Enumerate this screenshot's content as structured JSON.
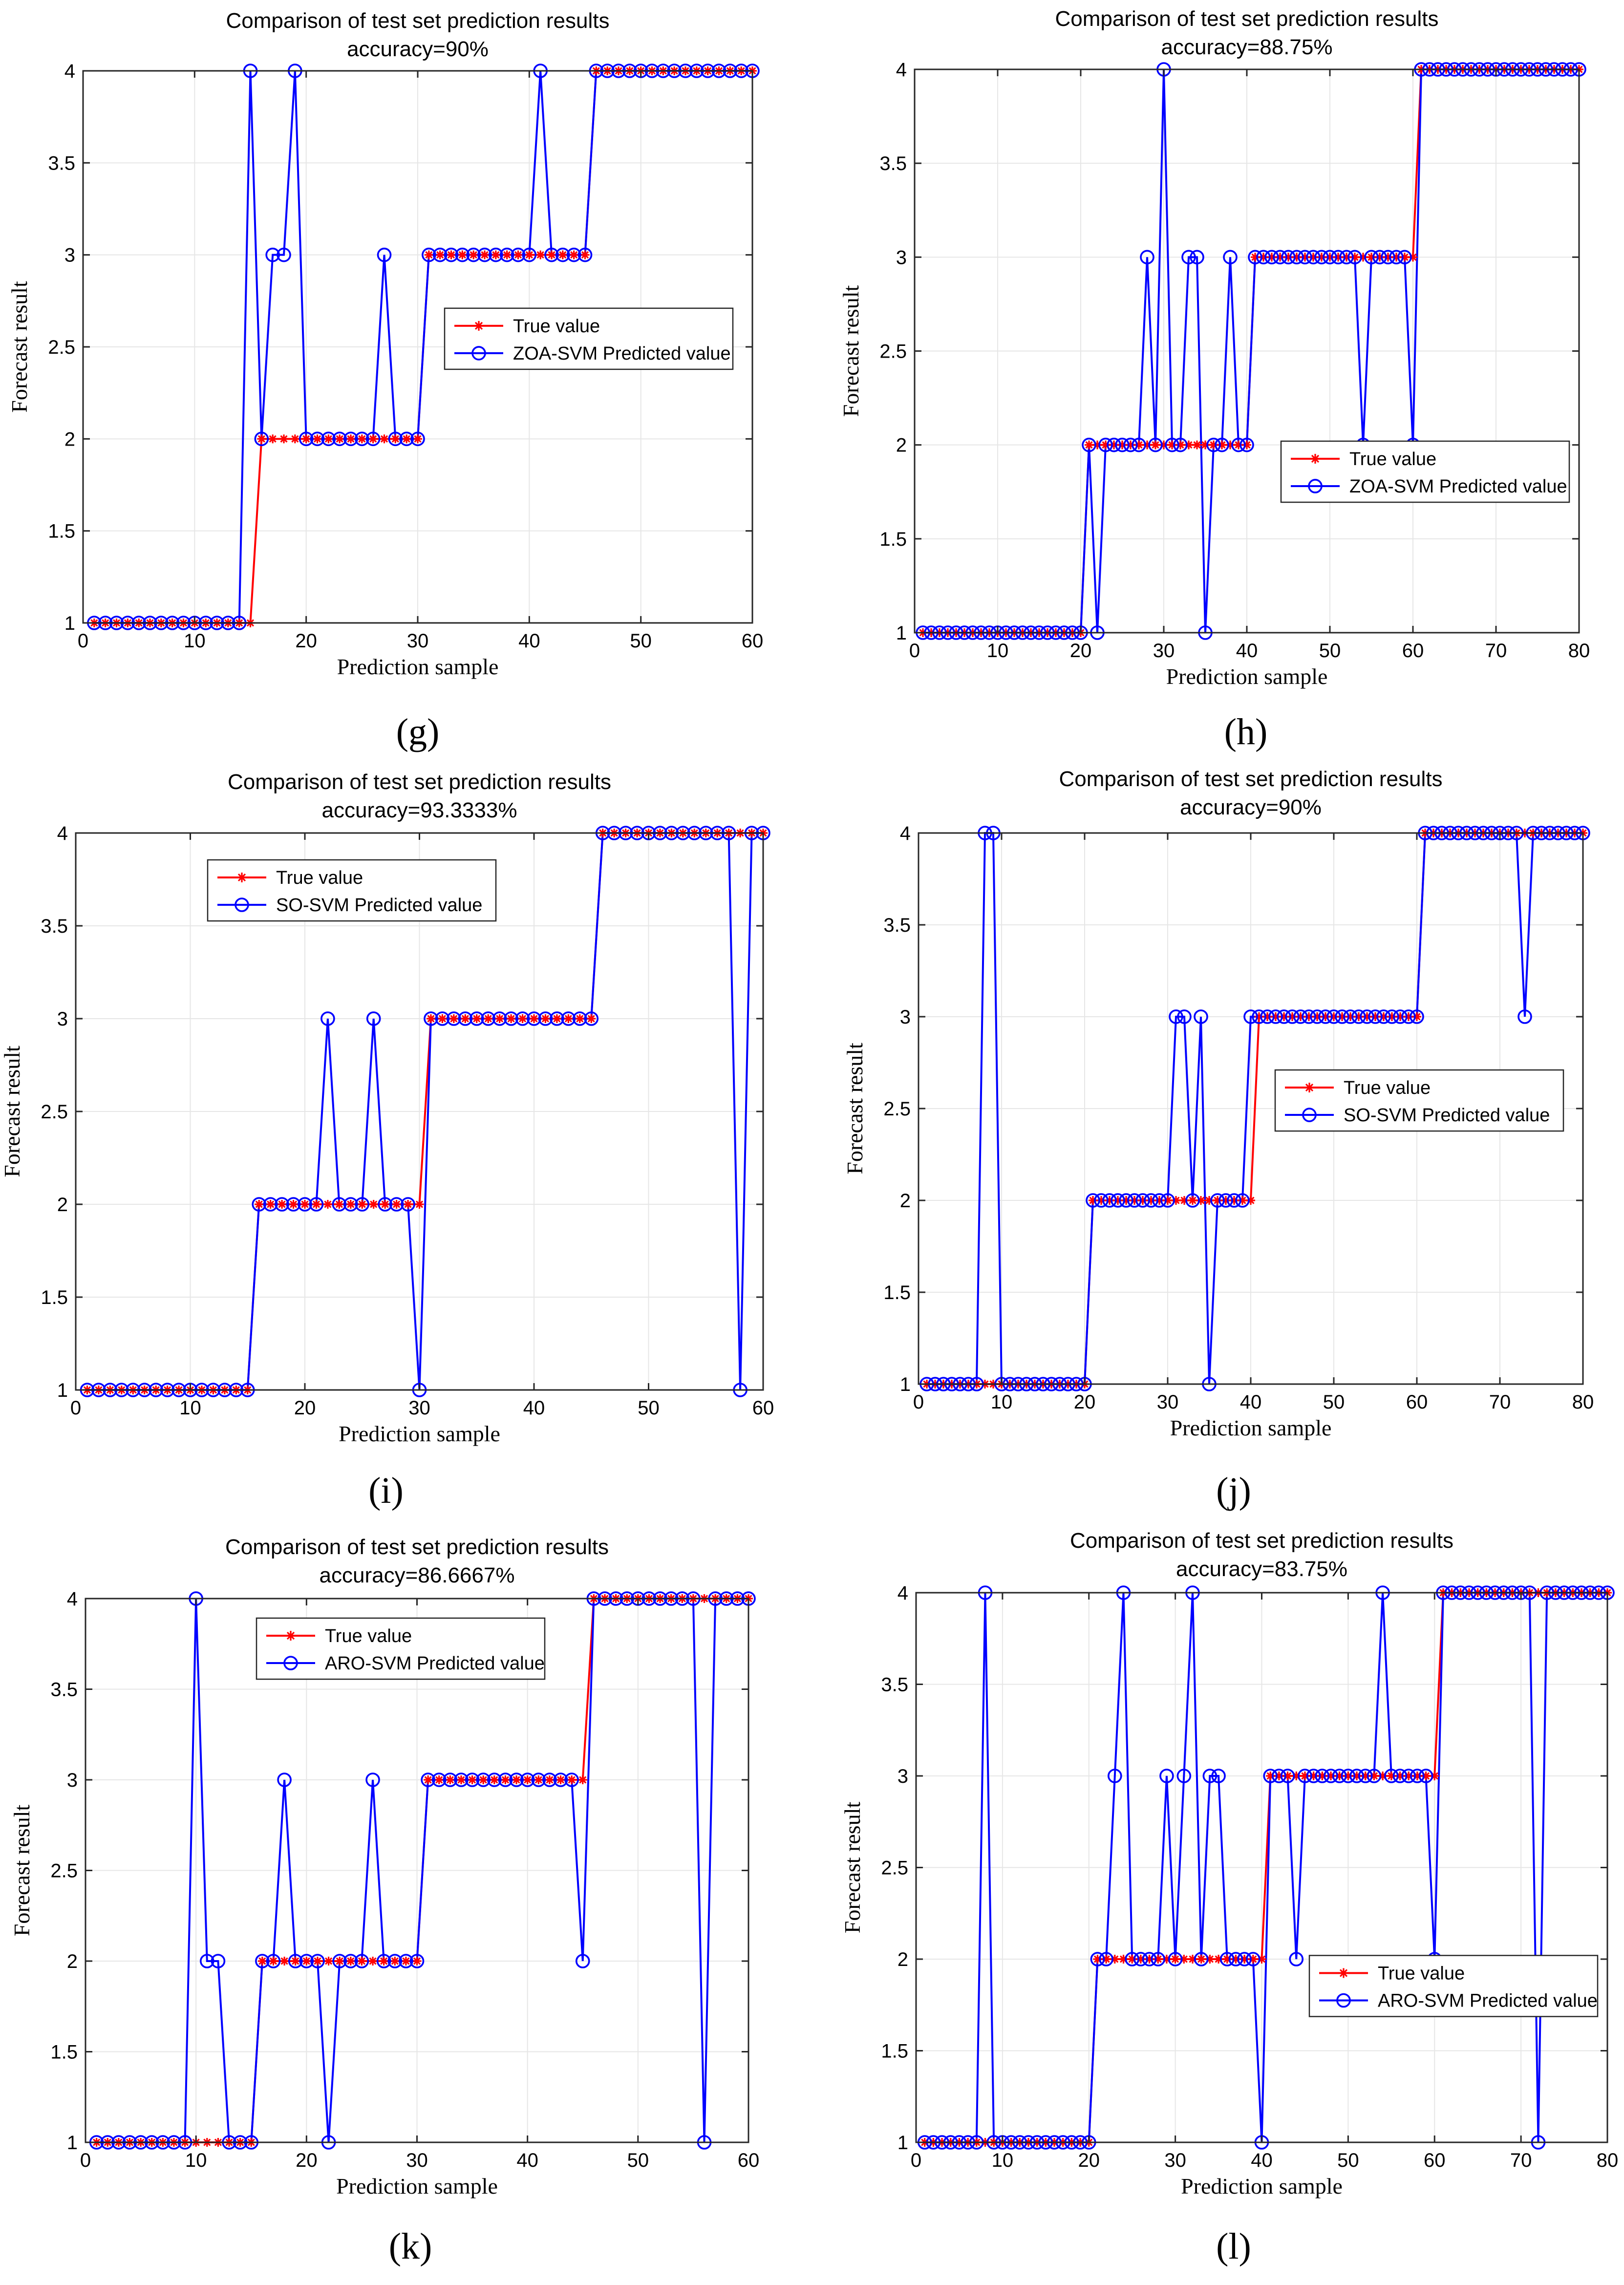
{
  "figure": {
    "title": "Comparison of test set prediction results",
    "xlabel": "Prediction sample",
    "ylabel": "Forecast result",
    "legend_true": "True value",
    "colors": {
      "true": "#ff0000",
      "pred": "#0000ff",
      "grid": "#e6e6e6",
      "axis": "#262626"
    }
  },
  "chart_data": [
    {
      "id": "g",
      "type": "line",
      "panel_label": "(g)",
      "accuracy": "accuracy=90%",
      "pred_name": "ZOA-SVM Predicted value",
      "legend_pos": "right-middle",
      "xlim": [
        0,
        60
      ],
      "ylim": [
        1,
        4
      ],
      "xticks": [
        0,
        10,
        20,
        30,
        40,
        50,
        60
      ],
      "yticks": [
        1,
        1.5,
        2,
        2.5,
        3,
        3.5,
        4
      ],
      "ytick_labels": [
        "1",
        "1.5",
        "2",
        "2.5",
        "3",
        "3.5",
        "4"
      ],
      "true_values": [
        1,
        1,
        1,
        1,
        1,
        1,
        1,
        1,
        1,
        1,
        1,
        1,
        1,
        1,
        1,
        2,
        2,
        2,
        2,
        2,
        2,
        2,
        2,
        2,
        2,
        2,
        2,
        2,
        2,
        2,
        3,
        3,
        3,
        3,
        3,
        3,
        3,
        3,
        3,
        3,
        3,
        3,
        3,
        3,
        3,
        4,
        4,
        4,
        4,
        4,
        4,
        4,
        4,
        4,
        4,
        4,
        4,
        4,
        4,
        4
      ],
      "pred_values": [
        1,
        1,
        1,
        1,
        1,
        1,
        1,
        1,
        1,
        1,
        1,
        1,
        1,
        1,
        4,
        2,
        3,
        3,
        4,
        2,
        2,
        2,
        2,
        2,
        2,
        2,
        3,
        2,
        2,
        2,
        3,
        3,
        3,
        3,
        3,
        3,
        3,
        3,
        3,
        3,
        4,
        3,
        3,
        3,
        3,
        4,
        4,
        4,
        4,
        4,
        4,
        4,
        4,
        4,
        4,
        4,
        4,
        4,
        4,
        4
      ]
    },
    {
      "id": "h",
      "type": "line",
      "panel_label": "(h)",
      "accuracy": "accuracy=88.75%",
      "pred_name": "ZOA-SVM Predicted value",
      "legend_pos": "bottom-right",
      "xlim": [
        0,
        80
      ],
      "ylim": [
        1,
        4
      ],
      "xticks": [
        0,
        10,
        20,
        30,
        40,
        50,
        60,
        70,
        80
      ],
      "yticks": [
        1,
        1.5,
        2,
        2.5,
        3,
        3.5,
        4
      ],
      "ytick_labels": [
        "1",
        "1.5",
        "2",
        "2.5",
        "3",
        "3.5",
        "4"
      ],
      "true_values": [
        1,
        1,
        1,
        1,
        1,
        1,
        1,
        1,
        1,
        1,
        1,
        1,
        1,
        1,
        1,
        1,
        1,
        1,
        1,
        1,
        2,
        2,
        2,
        2,
        2,
        2,
        2,
        2,
        2,
        2,
        2,
        2,
        2,
        2,
        2,
        2,
        2,
        2,
        2,
        2,
        3,
        3,
        3,
        3,
        3,
        3,
        3,
        3,
        3,
        3,
        3,
        3,
        3,
        3,
        3,
        3,
        3,
        3,
        3,
        3,
        4,
        4,
        4,
        4,
        4,
        4,
        4,
        4,
        4,
        4,
        4,
        4,
        4,
        4,
        4,
        4,
        4,
        4,
        4,
        4
      ],
      "pred_values": [
        1,
        1,
        1,
        1,
        1,
        1,
        1,
        1,
        1,
        1,
        1,
        1,
        1,
        1,
        1,
        1,
        1,
        1,
        1,
        1,
        2,
        1,
        2,
        2,
        2,
        2,
        2,
        3,
        2,
        4,
        2,
        2,
        3,
        3,
        1,
        2,
        2,
        3,
        2,
        2,
        3,
        3,
        3,
        3,
        3,
        3,
        3,
        3,
        3,
        3,
        3,
        3,
        3,
        2,
        3,
        3,
        3,
        3,
        3,
        2,
        4,
        4,
        4,
        4,
        4,
        4,
        4,
        4,
        4,
        4,
        4,
        4,
        4,
        4,
        4,
        4,
        4,
        4,
        4,
        4
      ]
    },
    {
      "id": "i",
      "type": "line",
      "panel_label": "(i)",
      "accuracy": "accuracy=93.3333%",
      "pred_name": "SO-SVM Predicted value",
      "legend_pos": "top-left",
      "xlim": [
        0,
        60
      ],
      "ylim": [
        1,
        4
      ],
      "xticks": [
        0,
        10,
        20,
        30,
        40,
        50,
        60
      ],
      "yticks": [
        1,
        1.5,
        2,
        2.5,
        3,
        3.5,
        4
      ],
      "ytick_labels": [
        "1",
        "1.5",
        "2",
        "2.5",
        "3",
        "3.5",
        "4"
      ],
      "true_values": [
        1,
        1,
        1,
        1,
        1,
        1,
        1,
        1,
        1,
        1,
        1,
        1,
        1,
        1,
        1,
        2,
        2,
        2,
        2,
        2,
        2,
        2,
        2,
        2,
        2,
        2,
        2,
        2,
        2,
        2,
        3,
        3,
        3,
        3,
        3,
        3,
        3,
        3,
        3,
        3,
        3,
        3,
        3,
        3,
        3,
        4,
        4,
        4,
        4,
        4,
        4,
        4,
        4,
        4,
        4,
        4,
        4,
        4,
        4,
        4
      ],
      "pred_values": [
        1,
        1,
        1,
        1,
        1,
        1,
        1,
        1,
        1,
        1,
        1,
        1,
        1,
        1,
        1,
        2,
        2,
        2,
        2,
        2,
        2,
        3,
        2,
        2,
        2,
        3,
        2,
        2,
        2,
        1,
        3,
        3,
        3,
        3,
        3,
        3,
        3,
        3,
        3,
        3,
        3,
        3,
        3,
        3,
        3,
        4,
        4,
        4,
        4,
        4,
        4,
        4,
        4,
        4,
        4,
        4,
        4,
        1,
        4,
        4
      ]
    },
    {
      "id": "j",
      "type": "line",
      "panel_label": "(j)",
      "accuracy": "accuracy=90%",
      "pred_name": "SO-SVM Predicted value",
      "legend_pos": "right-middle",
      "xlim": [
        0,
        80
      ],
      "ylim": [
        1,
        4
      ],
      "xticks": [
        0,
        10,
        20,
        30,
        40,
        50,
        60,
        70,
        80
      ],
      "yticks": [
        1,
        1.5,
        2,
        2.5,
        3,
        3.5,
        4
      ],
      "ytick_labels": [
        "1",
        "1.5",
        "2",
        "2.5",
        "3",
        "3.5",
        "4"
      ],
      "true_values": [
        1,
        1,
        1,
        1,
        1,
        1,
        1,
        1,
        1,
        1,
        1,
        1,
        1,
        1,
        1,
        1,
        1,
        1,
        1,
        1,
        2,
        2,
        2,
        2,
        2,
        2,
        2,
        2,
        2,
        2,
        2,
        2,
        2,
        2,
        2,
        2,
        2,
        2,
        2,
        2,
        3,
        3,
        3,
        3,
        3,
        3,
        3,
        3,
        3,
        3,
        3,
        3,
        3,
        3,
        3,
        3,
        3,
        3,
        3,
        3,
        4,
        4,
        4,
        4,
        4,
        4,
        4,
        4,
        4,
        4,
        4,
        4,
        4,
        4,
        4,
        4,
        4,
        4,
        4,
        4
      ],
      "pred_values": [
        1,
        1,
        1,
        1,
        1,
        1,
        1,
        4,
        4,
        1,
        1,
        1,
        1,
        1,
        1,
        1,
        1,
        1,
        1,
        1,
        2,
        2,
        2,
        2,
        2,
        2,
        2,
        2,
        2,
        2,
        3,
        3,
        2,
        3,
        1,
        2,
        2,
        2,
        2,
        3,
        3,
        3,
        3,
        3,
        3,
        3,
        3,
        3,
        3,
        3,
        3,
        3,
        3,
        3,
        3,
        3,
        3,
        3,
        3,
        3,
        4,
        4,
        4,
        4,
        4,
        4,
        4,
        4,
        4,
        4,
        4,
        4,
        3,
        4,
        4,
        4,
        4,
        4,
        4,
        4
      ]
    },
    {
      "id": "k",
      "type": "line",
      "panel_label": "(k)",
      "accuracy": "accuracy=86.6667%",
      "pred_name": "ARO-SVM Predicted value",
      "legend_pos": "top-center",
      "xlim": [
        0,
        60
      ],
      "ylim": [
        1,
        4
      ],
      "xticks": [
        0,
        10,
        20,
        30,
        40,
        50,
        60
      ],
      "yticks": [
        1,
        1.5,
        2,
        2.5,
        3,
        3.5,
        4
      ],
      "ytick_labels": [
        "1",
        "1.5",
        "2",
        "2.5",
        "3",
        "3.5",
        "4"
      ],
      "true_values": [
        1,
        1,
        1,
        1,
        1,
        1,
        1,
        1,
        1,
        1,
        1,
        1,
        1,
        1,
        1,
        2,
        2,
        2,
        2,
        2,
        2,
        2,
        2,
        2,
        2,
        2,
        2,
        2,
        2,
        2,
        3,
        3,
        3,
        3,
        3,
        3,
        3,
        3,
        3,
        3,
        3,
        3,
        3,
        3,
        3,
        4,
        4,
        4,
        4,
        4,
        4,
        4,
        4,
        4,
        4,
        4,
        4,
        4,
        4,
        4
      ],
      "pred_values": [
        1,
        1,
        1,
        1,
        1,
        1,
        1,
        1,
        1,
        4,
        2,
        2,
        1,
        1,
        1,
        2,
        2,
        3,
        2,
        2,
        2,
        1,
        2,
        2,
        2,
        3,
        2,
        2,
        2,
        2,
        3,
        3,
        3,
        3,
        3,
        3,
        3,
        3,
        3,
        3,
        3,
        3,
        3,
        3,
        2,
        4,
        4,
        4,
        4,
        4,
        4,
        4,
        4,
        4,
        4,
        1,
        4,
        4,
        4,
        4
      ]
    },
    {
      "id": "l",
      "type": "line",
      "panel_label": "(l)",
      "accuracy": "accuracy=83.75%",
      "pred_name": "ARO-SVM Predicted value",
      "legend_pos": "bottom-right",
      "xlim": [
        0,
        80
      ],
      "ylim": [
        1,
        4
      ],
      "xticks": [
        0,
        10,
        20,
        30,
        40,
        50,
        60,
        70,
        80
      ],
      "yticks": [
        1,
        1.5,
        2,
        2.5,
        3,
        3.5,
        4
      ],
      "ytick_labels": [
        "1",
        "1.5",
        "2",
        "2.5",
        "3",
        "3.5",
        "4"
      ],
      "true_values": [
        1,
        1,
        1,
        1,
        1,
        1,
        1,
        1,
        1,
        1,
        1,
        1,
        1,
        1,
        1,
        1,
        1,
        1,
        1,
        1,
        2,
        2,
        2,
        2,
        2,
        2,
        2,
        2,
        2,
        2,
        2,
        2,
        2,
        2,
        2,
        2,
        2,
        2,
        2,
        2,
        3,
        3,
        3,
        3,
        3,
        3,
        3,
        3,
        3,
        3,
        3,
        3,
        3,
        3,
        3,
        3,
        3,
        3,
        3,
        3,
        4,
        4,
        4,
        4,
        4,
        4,
        4,
        4,
        4,
        4,
        4,
        4,
        4,
        4,
        4,
        4,
        4,
        4,
        4,
        4
      ],
      "pred_values": [
        1,
        1,
        1,
        1,
        1,
        1,
        1,
        4,
        1,
        1,
        1,
        1,
        1,
        1,
        1,
        1,
        1,
        1,
        1,
        1,
        2,
        2,
        3,
        4,
        2,
        2,
        2,
        2,
        3,
        2,
        3,
        4,
        2,
        3,
        3,
        2,
        2,
        2,
        2,
        1,
        3,
        3,
        3,
        2,
        3,
        3,
        3,
        3,
        3,
        3,
        3,
        3,
        3,
        4,
        3,
        3,
        3,
        3,
        3,
        2,
        4,
        4,
        4,
        4,
        4,
        4,
        4,
        4,
        4,
        4,
        4,
        1,
        4,
        4,
        4,
        4,
        4,
        4,
        4,
        4
      ]
    }
  ]
}
